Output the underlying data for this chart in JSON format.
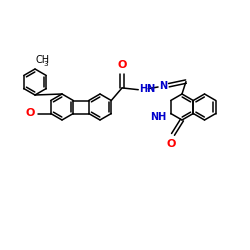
{
  "bg": "#ffffff",
  "bc": "#000000",
  "oc": "#ff0000",
  "nc": "#0000cc",
  "tc": "#000000",
  "lw": 1.1,
  "lw_dbl_inner": 1.0,
  "fs": 7.0,
  "fs_sub": 5.2,
  "figsize": [
    2.5,
    2.5
  ],
  "dpi": 100,
  "xlim": [
    0,
    250
  ],
  "ylim": [
    0,
    250
  ]
}
